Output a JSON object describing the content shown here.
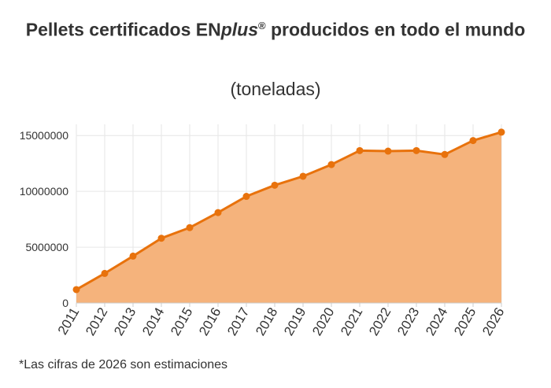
{
  "title": {
    "prefix": "Pellets certificados EN",
    "brand_italic": "plus",
    "registered": "®",
    "suffix": " producidos en todo el mundo"
  },
  "subtitle": "(toneladas)",
  "footnote": "*Las cifras de 2026 son estimaciones",
  "colors": {
    "line": "#e8720c",
    "fill": "#f5b37c",
    "grid": "#e6e6e6",
    "axis": "#cccccc"
  },
  "chart_data": {
    "type": "area",
    "x": [
      "2011",
      "2012",
      "2013",
      "2014",
      "2015",
      "2016",
      "2017",
      "2018",
      "2019",
      "2020",
      "2021",
      "2022",
      "2023",
      "2024",
      "2025",
      "2026"
    ],
    "series": [
      {
        "values": [
          1200000,
          2650000,
          4200000,
          5800000,
          6750000,
          8100000,
          9550000,
          10550000,
          11350000,
          12400000,
          13650000,
          13600000,
          13650000,
          13300000,
          14550000,
          15300000
        ]
      }
    ],
    "yticks": [
      0,
      5000000,
      10000000,
      15000000
    ],
    "ylim": [
      0,
      16000000
    ],
    "xlabel": "",
    "ylabel": "",
    "grid": true,
    "markers": true
  }
}
